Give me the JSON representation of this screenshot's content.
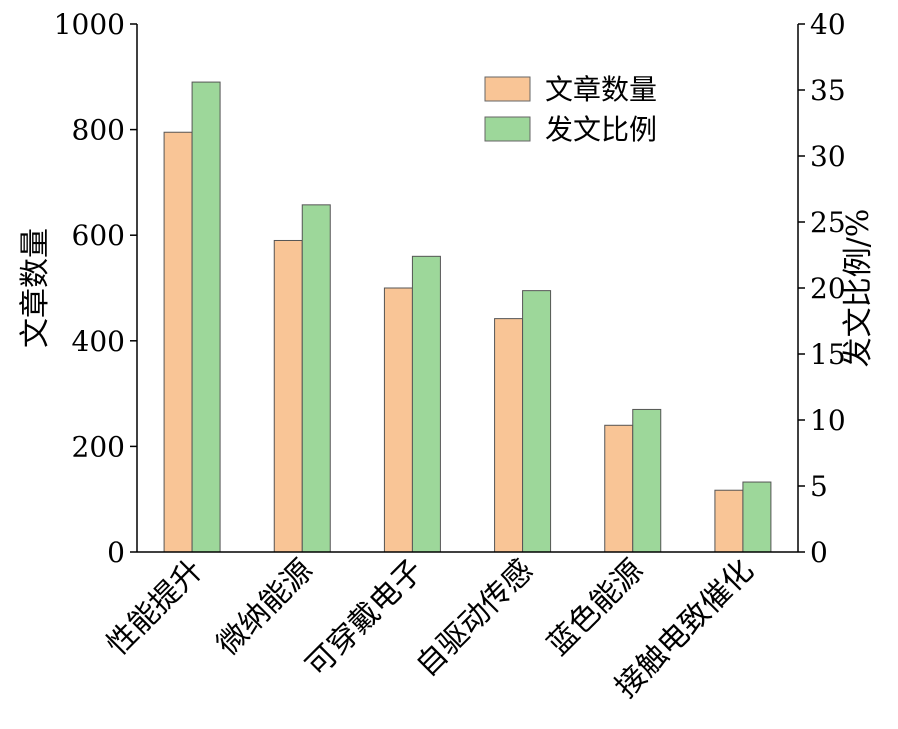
{
  "chart_data": {
    "type": "bar",
    "categories": [
      "性能提升",
      "微纳能源",
      "可穿戴电子",
      "自驱动传感",
      "蓝色能源",
      "接触电致催化"
    ],
    "series": [
      {
        "name": "文章数量",
        "axis": "left",
        "color": "#f9c596",
        "values": [
          795,
          590,
          500,
          442,
          240,
          117
        ]
      },
      {
        "name": "发文比例",
        "axis": "right",
        "color": "#9dd79a",
        "values": [
          35.6,
          26.3,
          22.4,
          19.8,
          10.8,
          5.3
        ]
      }
    ],
    "ylabel": "文章数量",
    "y2label": "发文比例/%",
    "ylim": [
      0,
      1000
    ],
    "y2lim": [
      0,
      40
    ],
    "yticks": [
      "0",
      "200",
      "400",
      "600",
      "800",
      "1000"
    ],
    "y2ticks": [
      "0",
      "5",
      "10",
      "15",
      "20",
      "25",
      "30",
      "35",
      "40"
    ],
    "grid": false,
    "legend": "top-right"
  }
}
